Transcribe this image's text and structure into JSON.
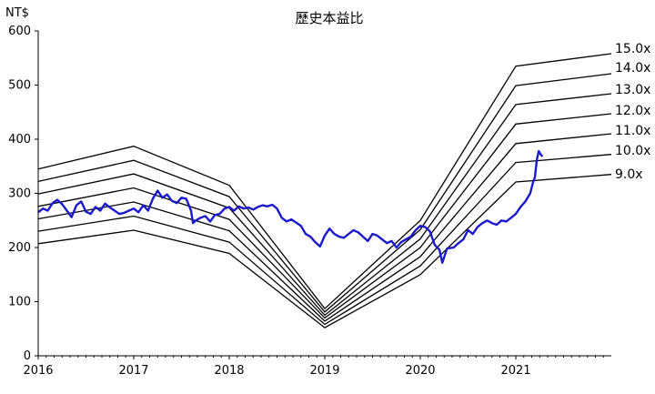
{
  "chart_data": {
    "type": "line",
    "title": "歷史本益比",
    "ylabel": "NT$",
    "ylim": [
      0,
      600
    ],
    "xlim": [
      2016,
      2022
    ],
    "y_ticks": [
      "0",
      "100",
      "200",
      "300",
      "400",
      "500",
      "600"
    ],
    "x_ticks": [
      "2016",
      "2017",
      "2018",
      "2019",
      "2020",
      "2021"
    ],
    "grid": false,
    "colors": {
      "price_line": "#1a1acc",
      "band_lines": "#000000"
    },
    "bands": [
      {
        "label": "15.0x",
        "points": [
          [
            2016.0,
            345
          ],
          [
            2017.0,
            387
          ],
          [
            2018.0,
            315
          ],
          [
            2019.0,
            87
          ],
          [
            2020.0,
            250
          ],
          [
            2021.0,
            535
          ],
          [
            2022.0,
            558
          ]
        ]
      },
      {
        "label": "14.0x",
        "points": [
          [
            2016.0,
            322
          ],
          [
            2017.0,
            361
          ],
          [
            2018.0,
            294
          ],
          [
            2019.0,
            81
          ],
          [
            2020.0,
            233
          ],
          [
            2021.0,
            499
          ],
          [
            2022.0,
            521
          ]
        ]
      },
      {
        "label": "13.0x",
        "points": [
          [
            2016.0,
            299
          ],
          [
            2017.0,
            336
          ],
          [
            2018.0,
            273
          ],
          [
            2019.0,
            75
          ],
          [
            2020.0,
            216
          ],
          [
            2021.0,
            464
          ],
          [
            2022.0,
            484
          ]
        ]
      },
      {
        "label": "12.0x",
        "points": [
          [
            2016.0,
            276
          ],
          [
            2017.0,
            310
          ],
          [
            2018.0,
            252
          ],
          [
            2019.0,
            70
          ],
          [
            2020.0,
            200
          ],
          [
            2021.0,
            428
          ],
          [
            2022.0,
            447
          ]
        ]
      },
      {
        "label": "11.0x",
        "points": [
          [
            2016.0,
            253
          ],
          [
            2017.0,
            284
          ],
          [
            2018.0,
            231
          ],
          [
            2019.0,
            64
          ],
          [
            2020.0,
            183
          ],
          [
            2021.0,
            392
          ],
          [
            2022.0,
            410
          ]
        ]
      },
      {
        "label": "10.0x",
        "points": [
          [
            2016.0,
            230
          ],
          [
            2017.0,
            258
          ],
          [
            2018.0,
            210
          ],
          [
            2019.0,
            58
          ],
          [
            2020.0,
            166
          ],
          [
            2021.0,
            357
          ],
          [
            2022.0,
            372
          ]
        ]
      },
      {
        "label": "9.0x",
        "points": [
          [
            2016.0,
            207
          ],
          [
            2017.0,
            232
          ],
          [
            2018.0,
            189
          ],
          [
            2019.0,
            52
          ],
          [
            2020.0,
            150
          ],
          [
            2021.0,
            321
          ],
          [
            2022.0,
            335
          ]
        ]
      }
    ],
    "series": [
      {
        "points": [
          [
            2016.0,
            265
          ],
          [
            2016.05,
            272
          ],
          [
            2016.1,
            268
          ],
          [
            2016.15,
            282
          ],
          [
            2016.2,
            288
          ],
          [
            2016.25,
            280
          ],
          [
            2016.3,
            268
          ],
          [
            2016.35,
            256
          ],
          [
            2016.4,
            278
          ],
          [
            2016.45,
            285
          ],
          [
            2016.5,
            266
          ],
          [
            2016.55,
            262
          ],
          [
            2016.6,
            275
          ],
          [
            2016.65,
            268
          ],
          [
            2016.7,
            281
          ],
          [
            2016.75,
            274
          ],
          [
            2016.8,
            268
          ],
          [
            2016.85,
            262
          ],
          [
            2016.9,
            264
          ],
          [
            2016.95,
            268
          ],
          [
            2017.0,
            272
          ],
          [
            2017.05,
            265
          ],
          [
            2017.1,
            278
          ],
          [
            2017.15,
            268
          ],
          [
            2017.2,
            290
          ],
          [
            2017.25,
            305
          ],
          [
            2017.3,
            292
          ],
          [
            2017.35,
            298
          ],
          [
            2017.4,
            286
          ],
          [
            2017.45,
            282
          ],
          [
            2017.5,
            292
          ],
          [
            2017.55,
            290
          ],
          [
            2017.6,
            268
          ],
          [
            2017.62,
            245
          ],
          [
            2017.65,
            250
          ],
          [
            2017.7,
            255
          ],
          [
            2017.75,
            258
          ],
          [
            2017.8,
            248
          ],
          [
            2017.85,
            260
          ],
          [
            2017.9,
            262
          ],
          [
            2017.95,
            272
          ],
          [
            2018.0,
            275
          ],
          [
            2018.05,
            268
          ],
          [
            2018.1,
            276
          ],
          [
            2018.15,
            272
          ],
          [
            2018.2,
            274
          ],
          [
            2018.25,
            270
          ],
          [
            2018.3,
            275
          ],
          [
            2018.35,
            278
          ],
          [
            2018.4,
            276
          ],
          [
            2018.45,
            279
          ],
          [
            2018.5,
            272
          ],
          [
            2018.55,
            255
          ],
          [
            2018.6,
            248
          ],
          [
            2018.65,
            252
          ],
          [
            2018.7,
            246
          ],
          [
            2018.75,
            240
          ],
          [
            2018.8,
            225
          ],
          [
            2018.85,
            220
          ],
          [
            2018.9,
            210
          ],
          [
            2018.95,
            202
          ],
          [
            2019.0,
            222
          ],
          [
            2019.05,
            235
          ],
          [
            2019.1,
            225
          ],
          [
            2019.15,
            220
          ],
          [
            2019.2,
            218
          ],
          [
            2019.25,
            225
          ],
          [
            2019.3,
            232
          ],
          [
            2019.35,
            228
          ],
          [
            2019.4,
            220
          ],
          [
            2019.45,
            212
          ],
          [
            2019.5,
            225
          ],
          [
            2019.55,
            222
          ],
          [
            2019.6,
            215
          ],
          [
            2019.65,
            208
          ],
          [
            2019.7,
            212
          ],
          [
            2019.75,
            200
          ],
          [
            2019.8,
            210
          ],
          [
            2019.85,
            215
          ],
          [
            2019.9,
            220
          ],
          [
            2019.95,
            232
          ],
          [
            2020.0,
            240
          ],
          [
            2020.05,
            238
          ],
          [
            2020.1,
            230
          ],
          [
            2020.15,
            205
          ],
          [
            2020.2,
            196
          ],
          [
            2020.23,
            172
          ],
          [
            2020.28,
            198
          ],
          [
            2020.35,
            200
          ],
          [
            2020.4,
            208
          ],
          [
            2020.45,
            215
          ],
          [
            2020.5,
            232
          ],
          [
            2020.55,
            225
          ],
          [
            2020.6,
            238
          ],
          [
            2020.65,
            245
          ],
          [
            2020.7,
            250
          ],
          [
            2020.75,
            245
          ],
          [
            2020.8,
            242
          ],
          [
            2020.85,
            250
          ],
          [
            2020.9,
            248
          ],
          [
            2020.95,
            255
          ],
          [
            2021.0,
            262
          ],
          [
            2021.05,
            275
          ],
          [
            2021.1,
            285
          ],
          [
            2021.15,
            300
          ],
          [
            2021.18,
            320
          ],
          [
            2021.2,
            330
          ],
          [
            2021.22,
            362
          ],
          [
            2021.24,
            378
          ],
          [
            2021.26,
            372
          ],
          [
            2021.28,
            368
          ]
        ]
      }
    ]
  }
}
